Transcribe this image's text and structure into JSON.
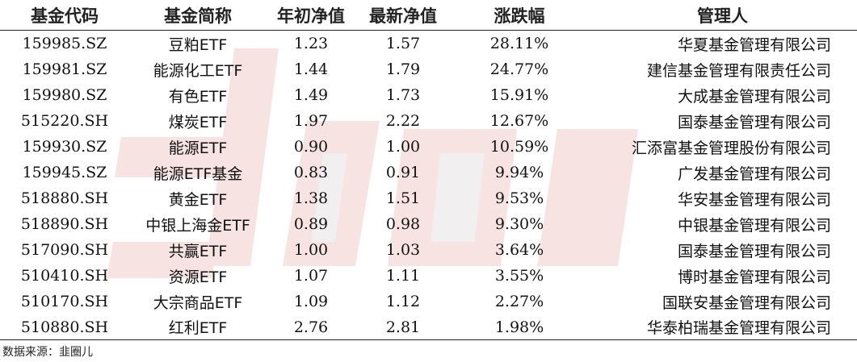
{
  "table": {
    "headers": {
      "code": "基金代码",
      "name": "基金简称",
      "start_nav": "年初净值",
      "latest_nav": "最新净值",
      "change": "涨跌幅",
      "manager": "管理人"
    },
    "rows": [
      {
        "code": "159985.SZ",
        "name": "豆粕ETF",
        "start_nav": "1.23",
        "latest_nav": "1.57",
        "change": "28.11%",
        "manager": "华夏基金管理有限公司"
      },
      {
        "code": "159981.SZ",
        "name": "能源化工ETF",
        "start_nav": "1.44",
        "latest_nav": "1.79",
        "change": "24.77%",
        "manager": "建信基金管理有限责任公司"
      },
      {
        "code": "159980.SZ",
        "name": "有色ETF",
        "start_nav": "1.49",
        "latest_nav": "1.73",
        "change": "15.91%",
        "manager": "大成基金管理有限公司"
      },
      {
        "code": "515220.SH",
        "name": "煤炭ETF",
        "start_nav": "1.97",
        "latest_nav": "2.22",
        "change": "12.67%",
        "manager": "国泰基金管理有限公司"
      },
      {
        "code": "159930.SZ",
        "name": "能源ETF",
        "start_nav": "0.90",
        "latest_nav": "1.00",
        "change": "10.59%",
        "manager": "汇添富基金管理股份有限公司"
      },
      {
        "code": "159945.SZ",
        "name": "能源ETF基金",
        "start_nav": "0.83",
        "latest_nav": "0.91",
        "change": "9.94%",
        "manager": "广发基金管理有限公司"
      },
      {
        "code": "518880.SH",
        "name": "黄金ETF",
        "start_nav": "1.38",
        "latest_nav": "1.51",
        "change": "9.53%",
        "manager": "华安基金管理有限公司"
      },
      {
        "code": "518890.SH",
        "name": "中银上海金ETF",
        "start_nav": "0.89",
        "latest_nav": "0.98",
        "change": "9.30%",
        "manager": "中银基金管理有限公司"
      },
      {
        "code": "517090.SH",
        "name": "共赢ETF",
        "start_nav": "1.00",
        "latest_nav": "1.03",
        "change": "3.64%",
        "manager": "国泰基金管理有限公司"
      },
      {
        "code": "510410.SH",
        "name": "资源ETF",
        "start_nav": "1.07",
        "latest_nav": "1.11",
        "change": "3.55%",
        "manager": "博时基金管理有限公司"
      },
      {
        "code": "510170.SH",
        "name": "大宗商品ETF",
        "start_nav": "1.09",
        "latest_nav": "1.12",
        "change": "2.27%",
        "manager": "国联安基金管理有限公司"
      },
      {
        "code": "510880.SH",
        "name": "红利ETF",
        "start_nav": "2.76",
        "latest_nav": "2.81",
        "change": "1.98%",
        "manager": "华泰柏瑞基金管理有限公司"
      }
    ]
  },
  "source": "数据来源：韭圈儿",
  "colors": {
    "watermark": "#f4d4d4",
    "rule": "#222222"
  }
}
